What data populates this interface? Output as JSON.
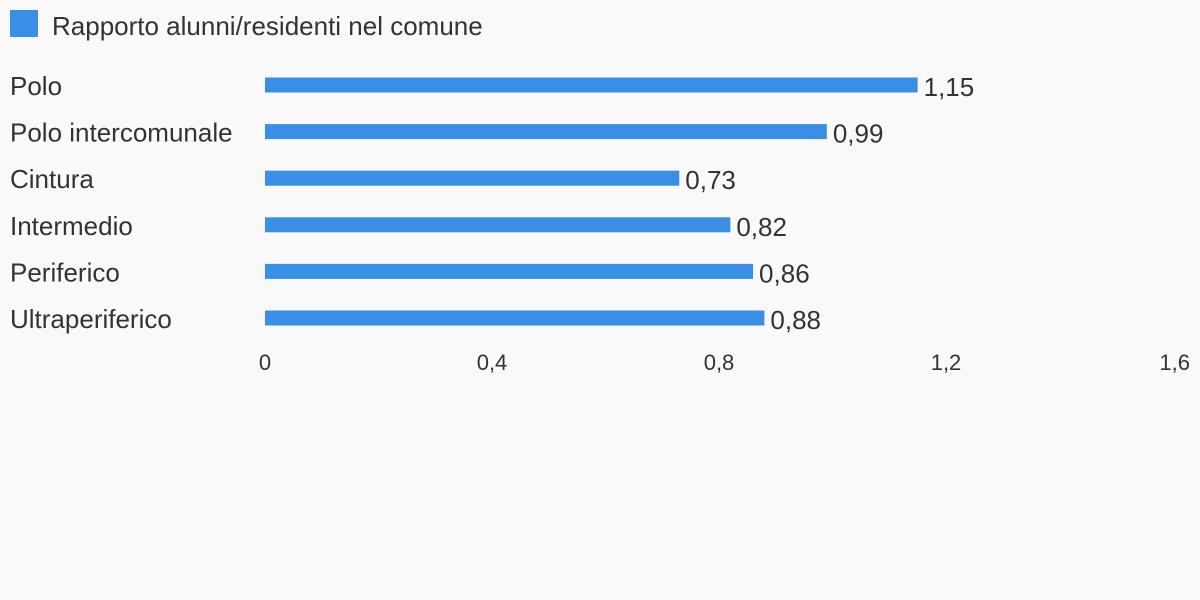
{
  "chart_data": {
    "type": "bar",
    "orientation": "horizontal",
    "categories": [
      "Polo",
      "Polo intercomunale",
      "Cintura",
      "Intermedio",
      "Periferico",
      "Ultraperiferico"
    ],
    "series": [
      {
        "name": "Rapporto alunni/residenti nel comune",
        "values": [
          1.15,
          0.99,
          0.73,
          0.82,
          0.86,
          0.88
        ],
        "value_labels": [
          "1,15",
          "0,99",
          "0,73",
          "0,82",
          "0,86",
          "0,88"
        ],
        "color": "#3a8ee6"
      }
    ],
    "xlim": [
      0,
      1.6
    ],
    "x_ticks": [
      0,
      0.4,
      0.8,
      1.2,
      1.6
    ],
    "x_tick_labels": [
      "0",
      "0,4",
      "0,8",
      "1,2",
      "1,6"
    ],
    "legend_position": "top-left",
    "grid": false
  }
}
